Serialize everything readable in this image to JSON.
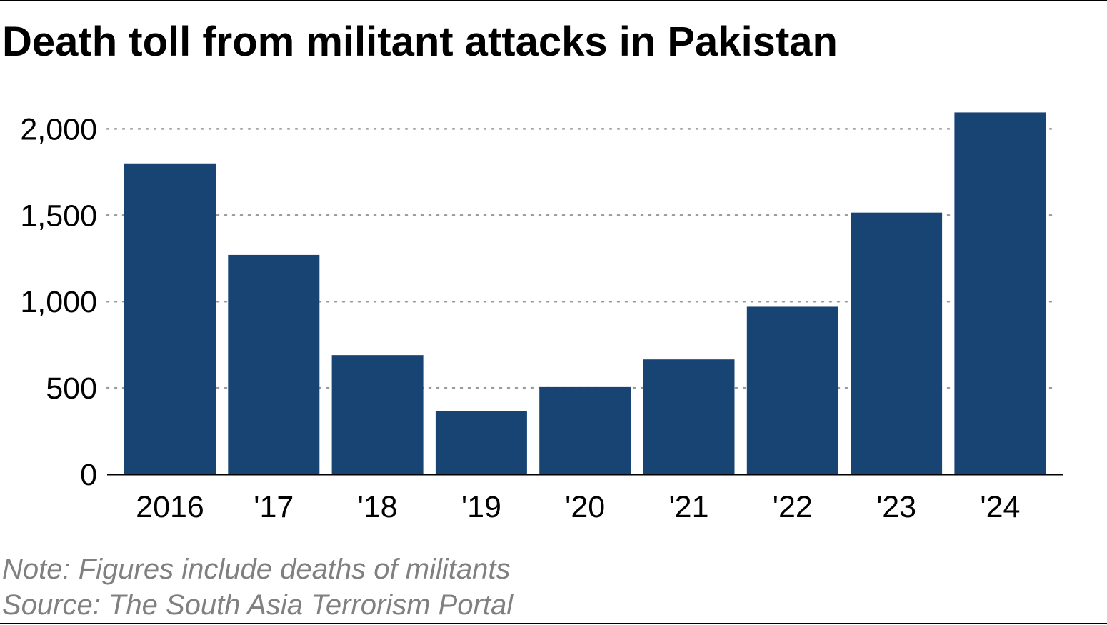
{
  "chart_data": {
    "type": "bar",
    "title": "Death toll from militant attacks in Pakistan",
    "categories": [
      "2016",
      "'17",
      "'18",
      "'19",
      "'20",
      "'21",
      "'22",
      "'23",
      "'24"
    ],
    "values": [
      1800,
      1270,
      690,
      365,
      505,
      665,
      970,
      1515,
      2095
    ],
    "yticks": [
      0,
      500,
      1000,
      1500,
      2000
    ],
    "ytick_labels": [
      "0",
      "500",
      "1,000",
      "1,500",
      "2,000"
    ],
    "ylim": [
      0,
      2100
    ],
    "grid": "horizontal dotted",
    "bar_color": "#174473",
    "note": "Note: Figures include deaths of militants",
    "source": "Source: The South Asia Terrorism Portal"
  }
}
